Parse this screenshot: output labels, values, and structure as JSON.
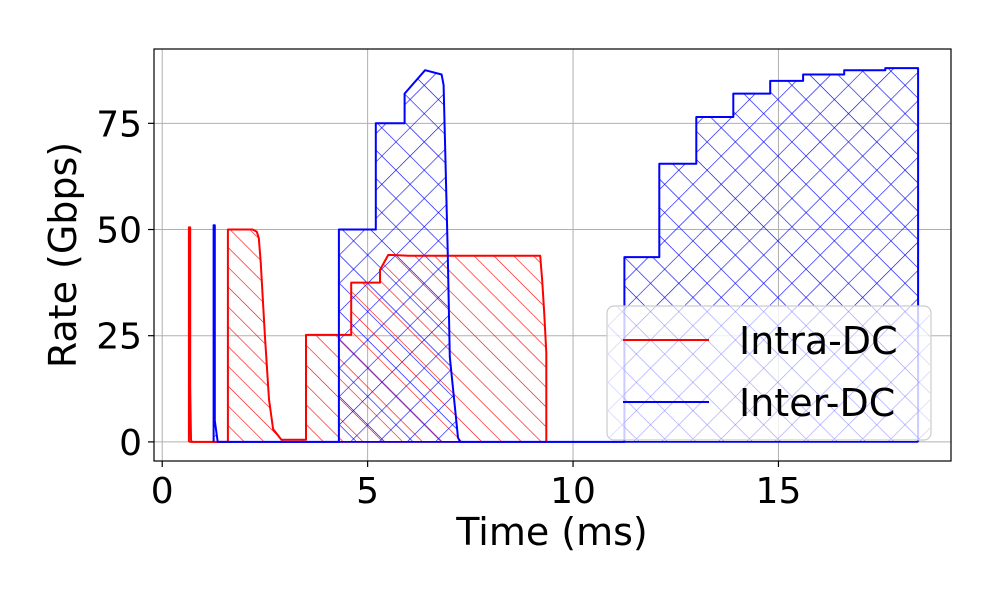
{
  "chart_data": {
    "type": "area",
    "xlabel": "Time (ms)",
    "ylabel": "Rate (Gbps)",
    "xlim": [
      -0.2,
      19.2
    ],
    "ylim": [
      -4.5,
      92.5
    ],
    "xticks": [
      0,
      5,
      10,
      15
    ],
    "yticks": [
      0,
      25,
      50,
      75
    ],
    "grid": true,
    "legend_position": "lower-right",
    "series": [
      {
        "name": "Intra-DC",
        "color": "#ff0000",
        "hatch": "diagonal",
        "x": [
          0.65,
          0.65,
          0.68,
          0.68,
          0.7,
          0.72,
          1.6,
          1.6,
          2.2,
          2.3,
          2.35,
          2.4,
          2.5,
          2.6,
          2.7,
          2.9,
          3.5,
          3.5,
          4.3,
          4.3,
          4.6,
          4.6,
          5.3,
          5.3,
          5.5,
          5.6,
          6.0,
          7.0,
          8.0,
          9.2,
          9.25,
          9.3,
          9.35,
          9.35
        ],
        "y": [
          0.0,
          50.5,
          50.5,
          13.0,
          0.5,
          0.0,
          0.0,
          50.0,
          50.0,
          49.5,
          48.0,
          42.0,
          25.0,
          10.0,
          3.0,
          0.5,
          0.5,
          25.2,
          25.2,
          25.2,
          25.2,
          37.5,
          37.5,
          40.5,
          44.0,
          44.0,
          43.8,
          43.8,
          43.8,
          43.8,
          38.0,
          30.0,
          21.0,
          0.0
        ]
      },
      {
        "name": "Inter-DC",
        "color": "#0000ff",
        "hatch": "crosshatch",
        "x": [
          1.25,
          1.25,
          1.28,
          1.28,
          1.35,
          4.3,
          4.3,
          5.2,
          5.2,
          5.9,
          5.9,
          6.4,
          6.4,
          6.8,
          6.85,
          6.95,
          7.0,
          7.2,
          7.25,
          11.25,
          11.25,
          12.1,
          12.1,
          13.0,
          13.0,
          13.9,
          13.9,
          14.8,
          14.8,
          15.6,
          15.6,
          16.6,
          16.6,
          17.6,
          17.6,
          18.4,
          18.4
        ],
        "y": [
          0.0,
          51.0,
          51.0,
          5.0,
          0.0,
          0.0,
          50.0,
          50.0,
          75.0,
          75.0,
          82.0,
          87.5,
          87.5,
          86.5,
          84.0,
          45.0,
          20.0,
          1.0,
          0.0,
          0.0,
          43.5,
          43.5,
          65.5,
          65.5,
          76.5,
          76.5,
          82.0,
          82.0,
          85.0,
          85.0,
          86.5,
          86.5,
          87.5,
          87.5,
          88.0,
          88.0,
          0.0
        ]
      }
    ]
  }
}
